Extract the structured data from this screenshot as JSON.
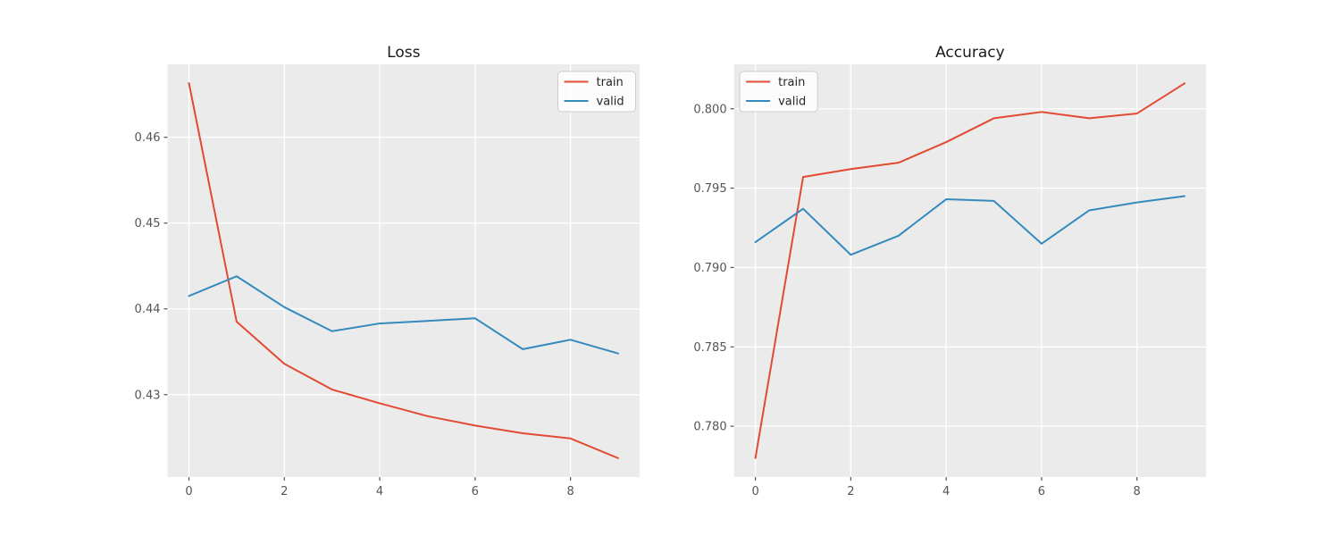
{
  "figure": {
    "background": "#ffffff"
  },
  "palette": {
    "train": "#E24A33",
    "valid": "#348ABD",
    "axes_bg": "#EBEBEB",
    "grid": "#FFFFFF",
    "tick_color": "#555555",
    "tick_text": "#555555",
    "title_text": "#1a1a1a",
    "legend_text": "#262626",
    "legend_bg": "rgba(255,255,255,0.85)",
    "legend_border": "#CCCCCC"
  },
  "chart_data": [
    {
      "type": "line",
      "title": "Loss",
      "x": [
        0,
        1,
        2,
        3,
        4,
        5,
        6,
        7,
        8,
        9
      ],
      "series": [
        {
          "name": "train",
          "color_key": "train",
          "values": [
            0.4663,
            0.4385,
            0.4336,
            0.4306,
            0.429,
            0.4275,
            0.4264,
            0.4255,
            0.4249,
            0.4226
          ]
        },
        {
          "name": "valid",
          "color_key": "valid",
          "values": [
            0.4415,
            0.4438,
            0.4402,
            0.4374,
            0.4383,
            0.4386,
            0.4389,
            0.4353,
            0.4364,
            0.4348
          ]
        }
      ],
      "xlim": [
        -0.45,
        9.45
      ],
      "ylim": [
        0.4204,
        0.4685
      ],
      "xticks": [
        0,
        2,
        4,
        6,
        8
      ],
      "xtick_labels": [
        "0",
        "2",
        "4",
        "6",
        "8"
      ],
      "yticks": [
        0.43,
        0.44,
        0.45,
        0.46
      ],
      "ytick_labels": [
        "0.43",
        "0.44",
        "0.45",
        "0.46"
      ],
      "grid": true,
      "legend": {
        "position": "upper-right",
        "entries": [
          "train",
          "valid"
        ]
      }
    },
    {
      "type": "line",
      "title": "Accuracy",
      "x": [
        0,
        1,
        2,
        3,
        4,
        5,
        6,
        7,
        8,
        9
      ],
      "series": [
        {
          "name": "train",
          "color_key": "train",
          "values": [
            0.778,
            0.7957,
            0.7962,
            0.7966,
            0.7979,
            0.7994,
            0.7998,
            0.7994,
            0.7997,
            0.8016
          ]
        },
        {
          "name": "valid",
          "color_key": "valid",
          "values": [
            0.7916,
            0.7937,
            0.7908,
            0.792,
            0.7943,
            0.7942,
            0.7915,
            0.7936,
            0.7941,
            0.7945
          ]
        }
      ],
      "xlim": [
        -0.45,
        9.45
      ],
      "ylim": [
        0.7768,
        0.8028
      ],
      "xticks": [
        0,
        2,
        4,
        6,
        8
      ],
      "xtick_labels": [
        "0",
        "2",
        "4",
        "6",
        "8"
      ],
      "yticks": [
        0.78,
        0.785,
        0.79,
        0.795,
        0.8
      ],
      "ytick_labels": [
        "0.780",
        "0.785",
        "0.790",
        "0.795",
        "0.800"
      ],
      "grid": true,
      "legend": {
        "position": "upper-left",
        "entries": [
          "train",
          "valid"
        ]
      }
    }
  ]
}
